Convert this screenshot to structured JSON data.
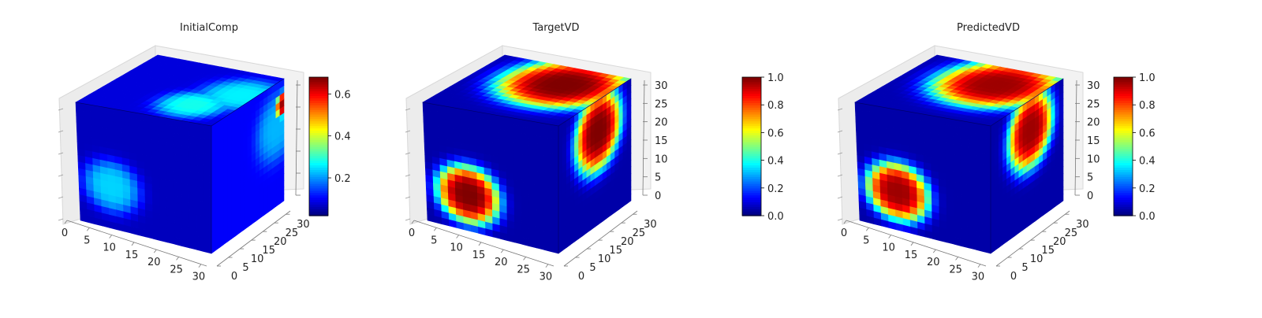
{
  "figure": {
    "colormap": "jet"
  },
  "chart_data": [
    {
      "type": "voxel-3d",
      "title": "InitialComp",
      "x_ticks": [
        "0",
        "5",
        "10",
        "15",
        "20",
        "25",
        "30"
      ],
      "y_ticks": [
        "0",
        "5",
        "10",
        "15",
        "20",
        "25",
        "30"
      ],
      "z_ticks": [],
      "colorbar": {
        "ticks": [
          "0.2",
          "0.4",
          "0.6"
        ],
        "range": [
          0.02,
          0.68
        ]
      },
      "faces": {
        "front": {
          "base": 0.06,
          "blobs": [
            {
              "u": 0.25,
              "v": 0.35,
              "r": 0.22,
              "value": 0.24
            }
          ]
        },
        "top": {
          "base": 0.08,
          "blobs": [
            {
              "u": 0.7,
              "v": 0.3,
              "r": 0.25,
              "value": 0.28
            },
            {
              "u": 0.9,
              "v": 0.6,
              "r": 0.3,
              "value": 0.26
            }
          ]
        },
        "right": {
          "base": 0.1,
          "blobs": [
            {
              "u": 0.9,
              "v": 0.65,
              "r": 0.28,
              "value": 0.22
            },
            {
              "u": 0.99,
              "v": 0.8,
              "r": 0.1,
              "value": 0.66
            }
          ]
        }
      }
    },
    {
      "type": "voxel-3d",
      "title": "TargetVD",
      "x_ticks": [
        "0",
        "5",
        "10",
        "15",
        "20",
        "25",
        "30"
      ],
      "y_ticks": [
        "0",
        "5",
        "10",
        "15",
        "20",
        "25",
        "30"
      ],
      "z_ticks": [
        "0",
        "5",
        "10",
        "15",
        "20",
        "25",
        "30"
      ],
      "colorbar": {
        "ticks": [
          "0.0",
          "0.2",
          "0.4",
          "0.6",
          "0.8",
          "1.0"
        ],
        "range": [
          0,
          1
        ]
      },
      "faces": {
        "front": {
          "base": 0.04,
          "blobs": [
            {
              "u": 0.32,
              "v": 0.3,
              "r": 0.24,
              "value": 1.0
            }
          ]
        },
        "top": {
          "base": 0.05,
          "blobs": [
            {
              "u": 0.65,
              "v": 0.7,
              "r": 0.45,
              "value": 1.0
            }
          ]
        },
        "right": {
          "base": 0.04,
          "blobs": [
            {
              "u": 0.55,
              "v": 0.75,
              "r": 0.32,
              "value": 1.0
            }
          ]
        }
      }
    },
    {
      "type": "voxel-3d",
      "title": "PredictedVD",
      "x_ticks": [
        "0",
        "5",
        "10",
        "15",
        "20",
        "25",
        "30"
      ],
      "y_ticks": [
        "0",
        "5",
        "10",
        "15",
        "20",
        "25",
        "30"
      ],
      "z_ticks": [
        "0",
        "5",
        "10",
        "15",
        "20",
        "25",
        "30"
      ],
      "colorbar": {
        "ticks": [
          "0.0",
          "0.2",
          "0.4",
          "0.6",
          "0.8",
          "1.0"
        ],
        "range": [
          0,
          1
        ]
      },
      "faces": {
        "front": {
          "base": 0.04,
          "blobs": [
            {
              "u": 0.3,
              "v": 0.32,
              "r": 0.24,
              "value": 0.97
            }
          ]
        },
        "top": {
          "base": 0.05,
          "blobs": [
            {
              "u": 0.66,
              "v": 0.7,
              "r": 0.44,
              "value": 0.97
            }
          ]
        },
        "right": {
          "base": 0.04,
          "blobs": [
            {
              "u": 0.55,
              "v": 0.76,
              "r": 0.31,
              "value": 0.97
            }
          ]
        }
      }
    }
  ]
}
